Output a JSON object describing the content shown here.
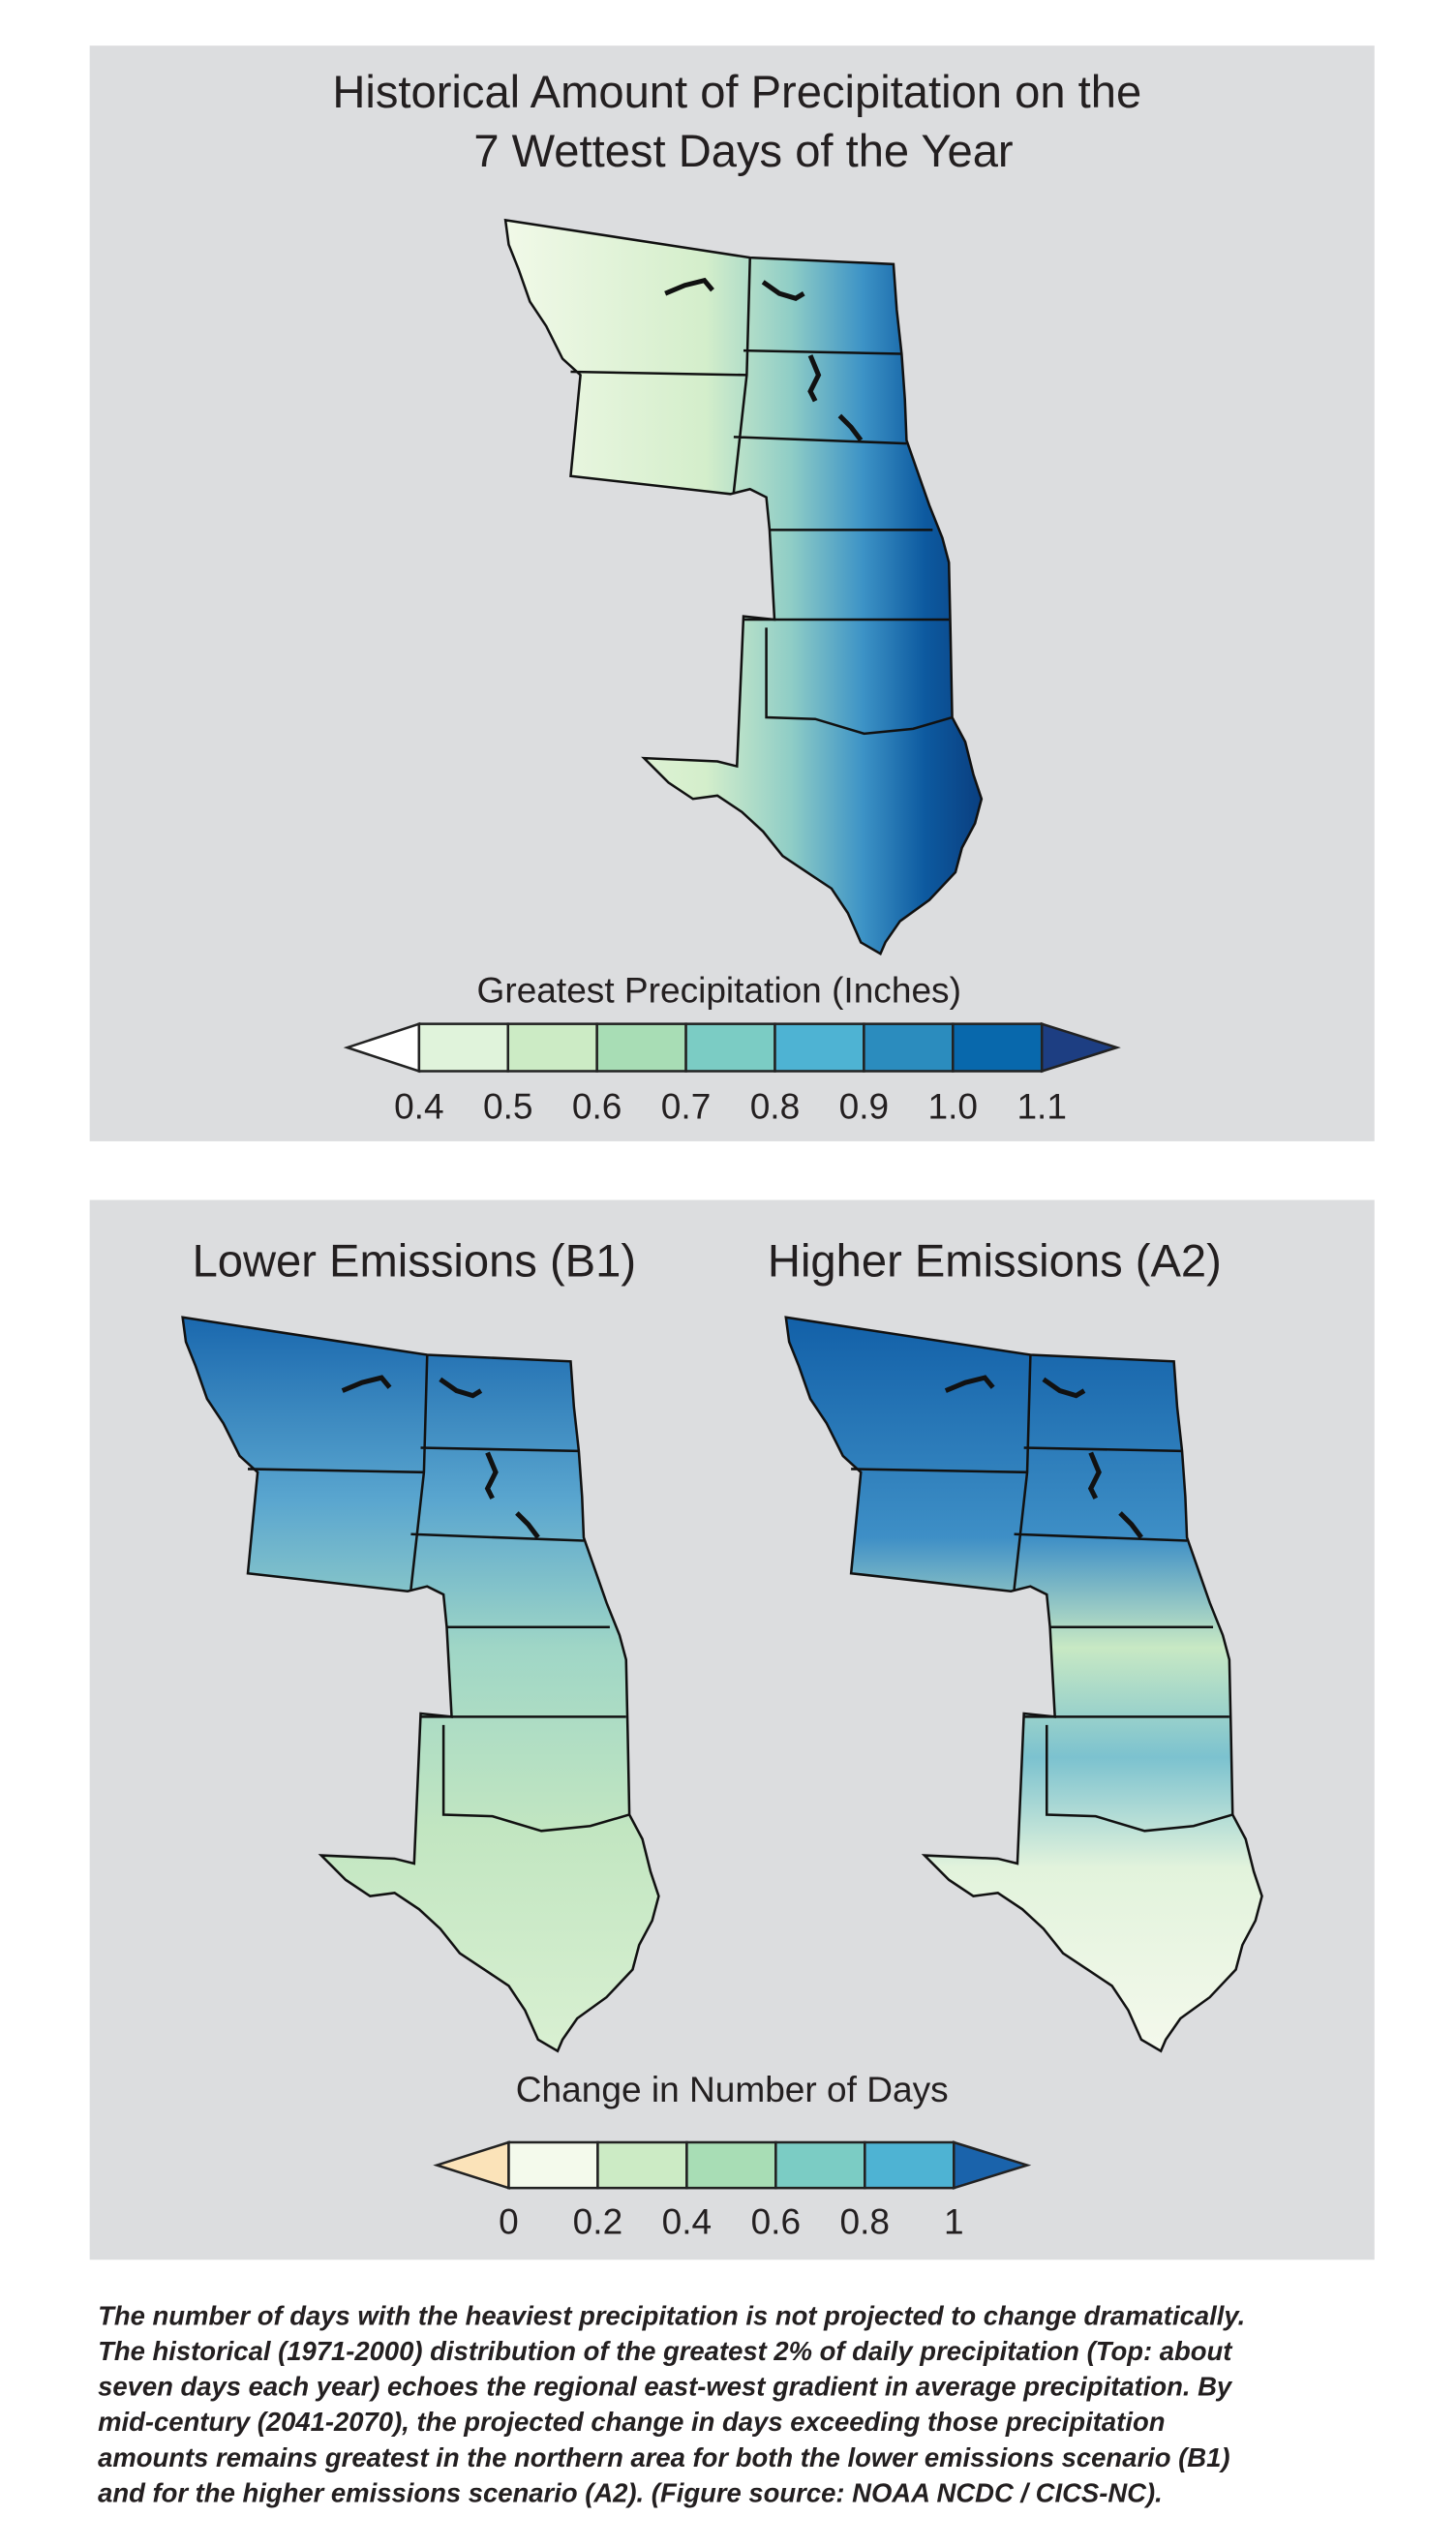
{
  "top_panel": {
    "title": [
      "Historical Amount of Precipitation on the",
      "7 Wettest Days of the Year"
    ],
    "colorbar": {
      "label": "Greatest Precipitation (Inches)",
      "ticks": [
        "0.4",
        "0.5",
        "0.6",
        "0.7",
        "0.8",
        "0.9",
        "1.0",
        "1.1"
      ]
    }
  },
  "bottom_panel": {
    "maps": [
      "Lower Emissions (B1)",
      "Higher Emissions (A2)"
    ],
    "colorbar": {
      "label": "Change in Number of Days",
      "ticks": [
        "0",
        "0.2",
        "0.4",
        "0.6",
        "0.8",
        "1"
      ]
    }
  },
  "caption": [
    "The number of days with the heaviest precipitation is not projected to change dramatically.",
    "The historical (1971-2000) distribution of the greatest 2% of daily precipitation (Top: about",
    "seven days each year) echoes the regional east-west gradient in average precipitation. By",
    "mid-century (2041-2070), the projected change in days exceeding those precipitation",
    "amounts remains greatest in the northern area for both the lower emissions scenario (B1)",
    "and for the higher emissions scenario (A2). (Figure source: NOAA NCDC / CICS-NC)."
  ]
}
